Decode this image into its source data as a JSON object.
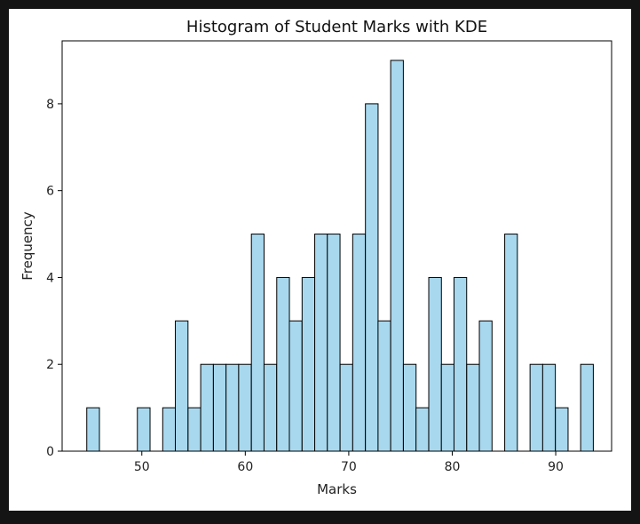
{
  "chart_data": {
    "type": "bar",
    "title": "Histogram of Student Marks with KDE",
    "xlabel": "Marks",
    "ylabel": "Frequency",
    "xlim": [
      42.3,
      95.4
    ],
    "ylim": [
      0,
      9.45
    ],
    "xticks": [
      50,
      60,
      70,
      80,
      90
    ],
    "yticks": [
      0,
      2,
      4,
      6,
      8
    ],
    "bin_width": 1.224,
    "bins": [
      {
        "x": 44.68,
        "count": 1
      },
      {
        "x": 45.9,
        "count": 0
      },
      {
        "x": 47.12,
        "count": 0
      },
      {
        "x": 48.35,
        "count": 0
      },
      {
        "x": 49.57,
        "count": 1
      },
      {
        "x": 50.8,
        "count": 0
      },
      {
        "x": 52.02,
        "count": 1
      },
      {
        "x": 53.24,
        "count": 3
      },
      {
        "x": 54.47,
        "count": 1
      },
      {
        "x": 55.69,
        "count": 2
      },
      {
        "x": 56.92,
        "count": 2
      },
      {
        "x": 58.14,
        "count": 2
      },
      {
        "x": 59.36,
        "count": 2
      },
      {
        "x": 60.59,
        "count": 5
      },
      {
        "x": 61.81,
        "count": 2
      },
      {
        "x": 63.04,
        "count": 4
      },
      {
        "x": 64.26,
        "count": 3
      },
      {
        "x": 65.49,
        "count": 4
      },
      {
        "x": 66.71,
        "count": 5
      },
      {
        "x": 67.93,
        "count": 5
      },
      {
        "x": 69.16,
        "count": 2
      },
      {
        "x": 70.38,
        "count": 5
      },
      {
        "x": 71.61,
        "count": 8
      },
      {
        "x": 72.83,
        "count": 3
      },
      {
        "x": 74.05,
        "count": 9
      },
      {
        "x": 75.28,
        "count": 2
      },
      {
        "x": 76.5,
        "count": 1
      },
      {
        "x": 77.73,
        "count": 4
      },
      {
        "x": 78.95,
        "count": 2
      },
      {
        "x": 80.17,
        "count": 4
      },
      {
        "x": 81.4,
        "count": 2
      },
      {
        "x": 82.62,
        "count": 3
      },
      {
        "x": 83.85,
        "count": 0
      },
      {
        "x": 85.07,
        "count": 5
      },
      {
        "x": 86.29,
        "count": 0
      },
      {
        "x": 87.52,
        "count": 2
      },
      {
        "x": 88.74,
        "count": 2
      },
      {
        "x": 89.97,
        "count": 1
      },
      {
        "x": 91.19,
        "count": 0
      },
      {
        "x": 92.41,
        "count": 2
      }
    ],
    "colors": {
      "bar_fill": "#a8d8ee",
      "bar_edge": "#000000"
    },
    "grid": false,
    "legend": "none"
  }
}
